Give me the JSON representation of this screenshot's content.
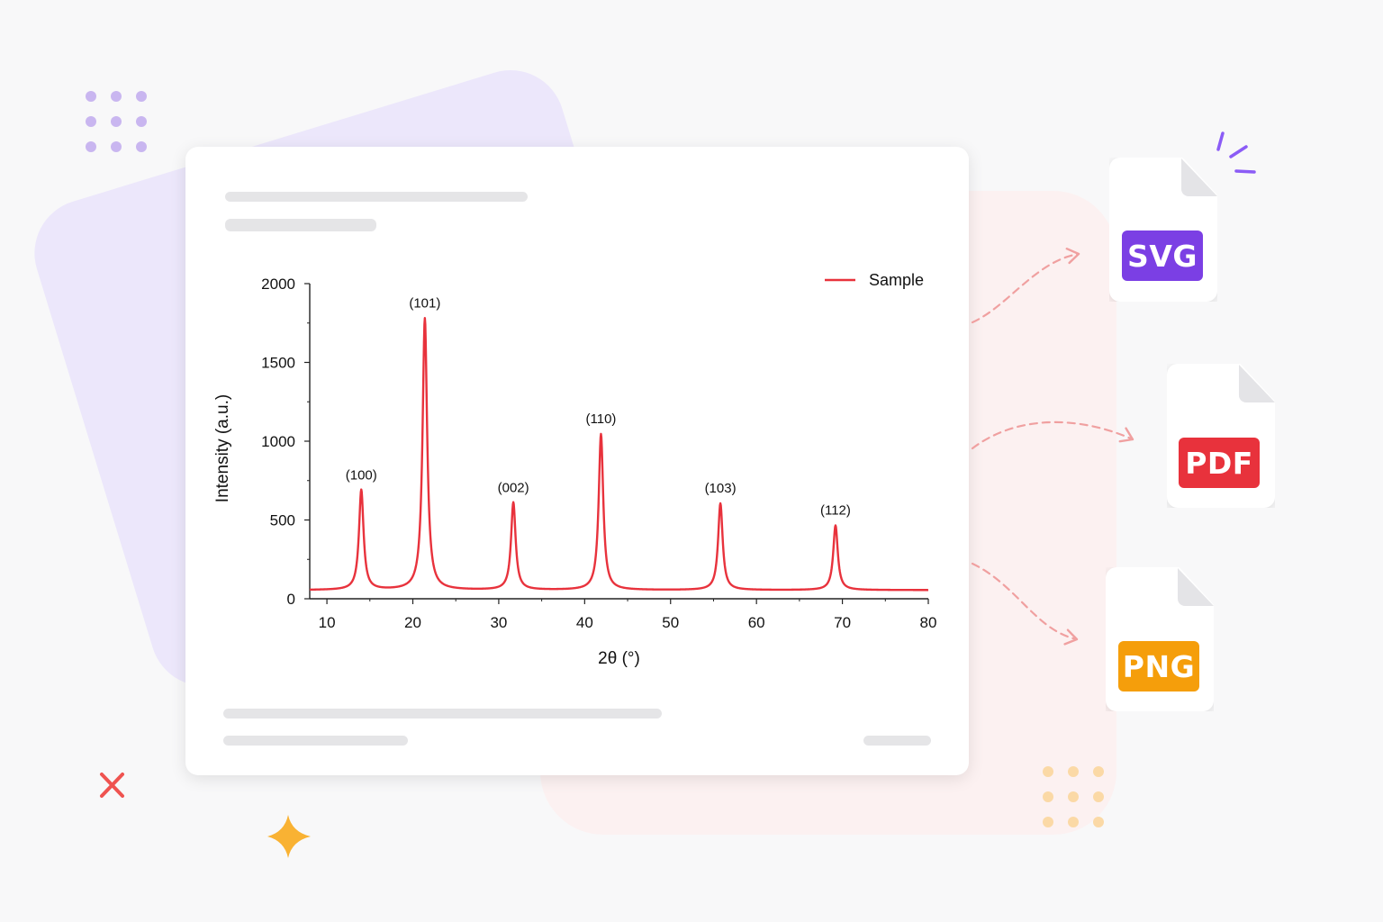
{
  "chart_data": {
    "type": "line",
    "xlabel": "2θ (°)",
    "ylabel": "Intensity (a.u.)",
    "xlim": [
      8,
      80
    ],
    "ylim": [
      0,
      2000
    ],
    "xticks": [
      10,
      20,
      30,
      40,
      50,
      60,
      70,
      80
    ],
    "yticks": [
      0,
      500,
      1000,
      1500,
      2000
    ],
    "grid": false,
    "legend": "top-right",
    "series": [
      {
        "name": "Sample",
        "color": "#e8323c",
        "baseline": 55,
        "peaks": [
          {
            "x": 14.0,
            "y": 690,
            "label": "(100)"
          },
          {
            "x": 21.4,
            "y": 1780,
            "label": "(101)"
          },
          {
            "x": 31.7,
            "y": 610,
            "label": "(002)"
          },
          {
            "x": 41.9,
            "y": 1045,
            "label": "(110)"
          },
          {
            "x": 55.8,
            "y": 605,
            "label": "(103)"
          },
          {
            "x": 69.2,
            "y": 465,
            "label": "(112)"
          }
        ]
      }
    ]
  },
  "exports": [
    {
      "label": "SVG",
      "color": "#7b3fe4",
      "icon": "svg-file-icon"
    },
    {
      "label": "PDF",
      "color": "#e8323c",
      "icon": "pdf-file-icon"
    },
    {
      "label": "PNG",
      "color": "#f59e0b",
      "icon": "png-file-icon"
    }
  ],
  "decor_colors": {
    "arrow": "#f0a0a0",
    "sparkle": "#f9b233",
    "cross": "#ef5350",
    "dash": "#8b5cf6"
  }
}
